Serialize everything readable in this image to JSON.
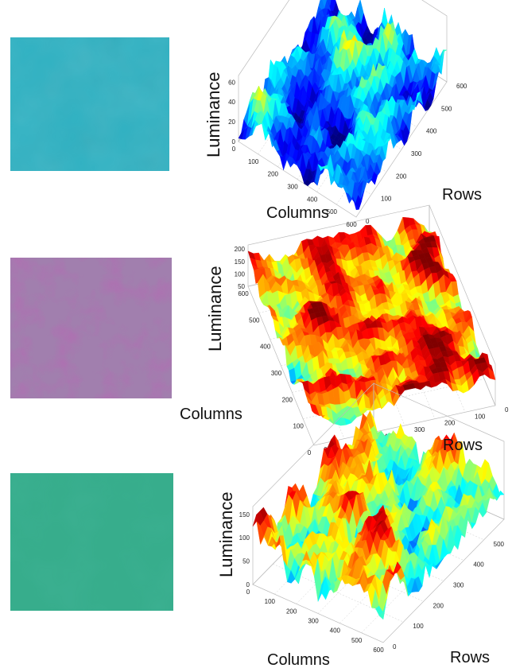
{
  "colors": {
    "sample_1": "#2fb2c3",
    "sample_2": "#a17fae",
    "sample_3": "#37ad8c"
  },
  "chart_data": [
    {
      "type": "surface",
      "title": "",
      "xlabel": "Columns",
      "ylabel": "Rows",
      "zlabel": "Luminance",
      "columns_ticks": [
        "0",
        "100",
        "200",
        "300",
        "400",
        "500",
        "600"
      ],
      "rows_ticks": [
        "0",
        "100",
        "200",
        "300",
        "400",
        "500",
        "600"
      ],
      "z_ticks": [
        "0",
        "20",
        "40",
        "60"
      ],
      "zlim": [
        0,
        60
      ],
      "colormap": "jet",
      "grid": true
    },
    {
      "type": "surface",
      "title": "",
      "xlabel": "Columns",
      "ylabel": "Rows",
      "zlabel": "Luminance",
      "columns_ticks": [
        "600",
        "500",
        "400",
        "300",
        "200",
        "100",
        "0"
      ],
      "rows_ticks": [
        "600",
        "500",
        "400",
        "300",
        "200",
        "100",
        "0"
      ],
      "z_ticks": [
        "50",
        "100",
        "150",
        "200"
      ],
      "zlim": [
        0,
        200
      ],
      "colormap": "jet",
      "grid": true
    },
    {
      "type": "surface",
      "title": "",
      "xlabel": "Columns",
      "ylabel": "Rows",
      "zlabel": "Luminance",
      "columns_ticks": [
        "0",
        "100",
        "200",
        "300",
        "400",
        "500",
        "600"
      ],
      "rows_ticks": [
        "0",
        "100",
        "200",
        "300",
        "400",
        "500",
        "600"
      ],
      "z_ticks": [
        "0",
        "50",
        "100",
        "150"
      ],
      "zlim": [
        0,
        150
      ],
      "colormap": "jet",
      "grid": true
    }
  ]
}
